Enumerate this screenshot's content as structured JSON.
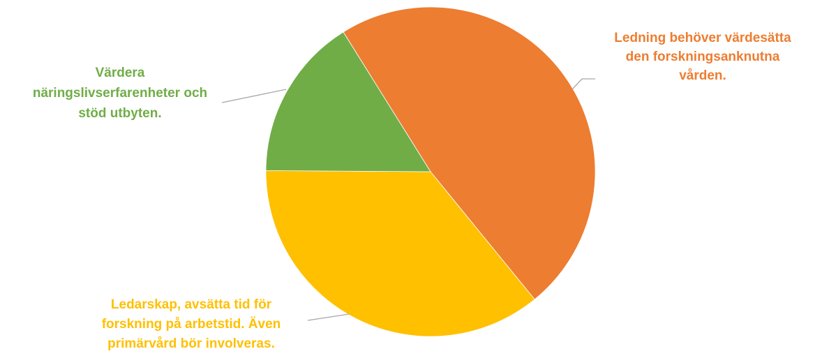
{
  "chart_data": {
    "type": "pie",
    "title": "",
    "slices": [
      {
        "label": "Ledning behöver värdesätta den forskningsanknutna vården.",
        "label_lines": [
          "Ledning behöver värdesätta",
          "den forskningsanknutna",
          "vården."
        ],
        "value": 48,
        "color": "#ed7d31"
      },
      {
        "label": "Ledarskap, avsätta tid för forskning på arbetstid. Även primärvård bör involveras.",
        "label_lines": [
          "Ledarskap, avsätta tid för",
          "forskning på arbetstid. Även",
          "primärvård bör involveras."
        ],
        "value": 36,
        "color": "#ffc000"
      },
      {
        "label": "Värdera näringslivserfarenheter och stöd utbyten.",
        "label_lines": [
          "Värdera",
          "näringslivserfarenheter och",
          "stöd utbyten."
        ],
        "value": 16,
        "color": "#70ad47"
      }
    ],
    "start_angle_deg": -32,
    "direction": "clockwise",
    "legend": "none",
    "data_labels": "category-name"
  }
}
